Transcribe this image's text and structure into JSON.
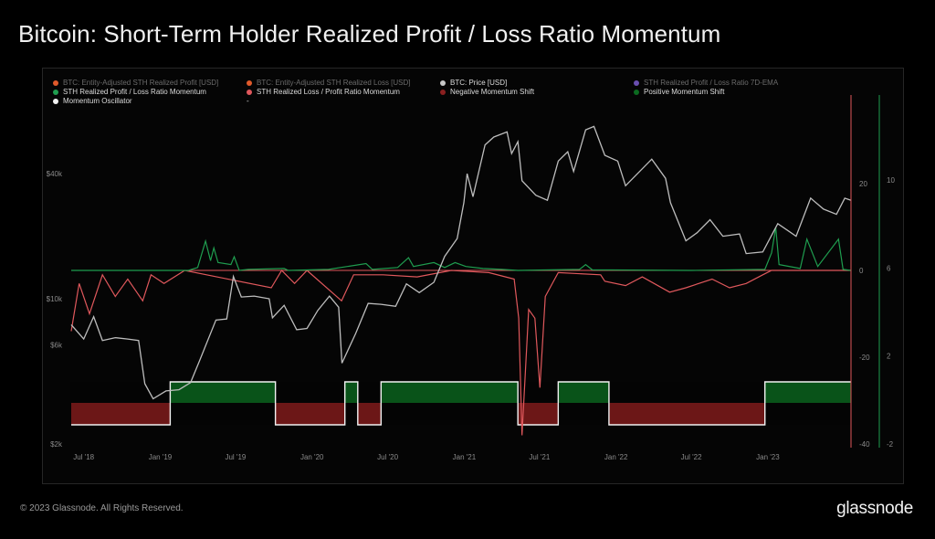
{
  "header": {
    "title": "Bitcoin: Short-Term Holder Realized Profit / Loss Ratio Momentum"
  },
  "footer": {
    "copyright": "© 2023 Glassnode. All Rights Reserved.",
    "brand": "glassnode"
  },
  "watermark": "glassnode",
  "colors": {
    "price": "#bdbdbd",
    "profit_momentum": "#1f9d4f",
    "loss_momentum": "#e0585c",
    "negative_shift": "#7a1a1a",
    "positive_shift": "#0b5e1c",
    "oscillator": "#f2f2f2",
    "adj_profit": "#e05a2b",
    "adj_loss": "#e05a2b",
    "ema": "#6a4fb0",
    "right_axis_red": "#e0585c",
    "right_axis_green": "#1f9d4f"
  },
  "legend": [
    {
      "label": "BTC: Entity-Adjusted STH Realized Profit [USD]",
      "color": "#e05a2b",
      "muted": true,
      "row": 0,
      "col": 0
    },
    {
      "label": "BTC: Entity-Adjusted STH Realized Loss [USD]",
      "color": "#e05a2b",
      "muted": true,
      "row": 0,
      "col": 1
    },
    {
      "label": "BTC: Price [USD]",
      "color": "#c8c8c8",
      "muted": false,
      "row": 0,
      "col": 2
    },
    {
      "label": "STH Realized Profit / Loss Ratio 7D-EMA",
      "color": "#6a4fb0",
      "muted": true,
      "row": 0,
      "col": 3
    },
    {
      "label": "STH Realized Profit / Loss Ratio Momentum",
      "color": "#1f9d4f",
      "muted": false,
      "row": 1,
      "col": 0
    },
    {
      "label": "STH Realized Loss / Profit Ratio Momentum",
      "color": "#e0585c",
      "muted": false,
      "row": 1,
      "col": 1
    },
    {
      "label": "Negative Momentum Shift",
      "color": "#8a2020",
      "muted": false,
      "row": 1,
      "col": 2
    },
    {
      "label": "Positive Momentum Shift",
      "color": "#0b6a20",
      "muted": false,
      "row": 1,
      "col": 3
    },
    {
      "label": "Momentum Oscillator",
      "color": "#f2f2f2",
      "muted": false,
      "row": 2,
      "col": 0
    },
    {
      "label": "-",
      "color": "",
      "muted": false,
      "row": 2,
      "col": 1
    }
  ],
  "chart_data": {
    "type": "line",
    "title": "Bitcoin: Short-Term Holder Realized Profit / Loss Ratio Momentum",
    "x_ticks": [
      "Jul '18",
      "Jan '19",
      "Jul '19",
      "Jan '20",
      "Jul '20",
      "Jan '21",
      "Jul '21",
      "Jan '22",
      "Jul '22",
      "Jan '23"
    ],
    "x_range": [
      "2018-06-01",
      "2023-07-20"
    ],
    "left_axis": {
      "scale": "log",
      "ticks": [
        "$2k",
        "$6k",
        "$10k",
        "$40k"
      ],
      "tick_values": [
        2000,
        6000,
        10000,
        40000
      ],
      "range": [
        2000,
        75000
      ]
    },
    "right_axis_red": {
      "ticks": [
        20,
        0,
        -20,
        -40
      ],
      "range": [
        -40,
        30
      ]
    },
    "right_axis_green": {
      "ticks": [
        10,
        6,
        2,
        -2
      ],
      "range": [
        -2,
        16
      ]
    },
    "series": [
      {
        "name": "BTC: Price [USD]",
        "points": [
          [
            "2018-06-01",
            7500
          ],
          [
            "2018-07-01",
            6400
          ],
          [
            "2018-07-25",
            8200
          ],
          [
            "2018-08-15",
            6300
          ],
          [
            "2018-09-15",
            6500
          ],
          [
            "2018-10-15",
            6400
          ],
          [
            "2018-11-10",
            6300
          ],
          [
            "2018-11-25",
            3900
          ],
          [
            "2018-12-15",
            3300
          ],
          [
            "2019-01-15",
            3600
          ],
          [
            "2019-02-15",
            3650
          ],
          [
            "2019-03-15",
            3950
          ],
          [
            "2019-04-05",
            5000
          ],
          [
            "2019-05-15",
            7900
          ],
          [
            "2019-06-10",
            8000
          ],
          [
            "2019-06-26",
            12800
          ],
          [
            "2019-07-15",
            10200
          ],
          [
            "2019-08-15",
            10300
          ],
          [
            "2019-09-20",
            10000
          ],
          [
            "2019-09-28",
            8100
          ],
          [
            "2019-10-26",
            9300
          ],
          [
            "2019-11-25",
            7100
          ],
          [
            "2019-12-20",
            7200
          ],
          [
            "2020-01-15",
            8800
          ],
          [
            "2020-02-12",
            10300
          ],
          [
            "2020-03-05",
            9100
          ],
          [
            "2020-03-13",
            4900
          ],
          [
            "2020-04-15",
            6800
          ],
          [
            "2020-05-15",
            9500
          ],
          [
            "2020-06-15",
            9400
          ],
          [
            "2020-07-20",
            9200
          ],
          [
            "2020-08-15",
            11800
          ],
          [
            "2020-09-15",
            10700
          ],
          [
            "2020-10-20",
            12000
          ],
          [
            "2020-11-15",
            16000
          ],
          [
            "2020-12-15",
            19500
          ],
          [
            "2020-12-31",
            29000
          ],
          [
            "2021-01-08",
            40000
          ],
          [
            "2021-01-22",
            31000
          ],
          [
            "2021-02-20",
            55000
          ],
          [
            "2021-03-13",
            60000
          ],
          [
            "2021-04-14",
            63500
          ],
          [
            "2021-04-25",
            50000
          ],
          [
            "2021-05-10",
            57000
          ],
          [
            "2021-05-20",
            37000
          ],
          [
            "2021-06-22",
            31500
          ],
          [
            "2021-07-20",
            29800
          ],
          [
            "2021-08-15",
            46000
          ],
          [
            "2021-09-07",
            51000
          ],
          [
            "2021-09-21",
            41000
          ],
          [
            "2021-10-20",
            65000
          ],
          [
            "2021-11-09",
            67500
          ],
          [
            "2021-12-05",
            49000
          ],
          [
            "2022-01-05",
            46000
          ],
          [
            "2022-01-24",
            35000
          ],
          [
            "2022-03-28",
            47000
          ],
          [
            "2022-04-30",
            38000
          ],
          [
            "2022-05-12",
            29000
          ],
          [
            "2022-06-18",
            19000
          ],
          [
            "2022-07-15",
            20800
          ],
          [
            "2022-08-15",
            24000
          ],
          [
            "2022-09-15",
            20000
          ],
          [
            "2022-10-25",
            20500
          ],
          [
            "2022-11-10",
            16500
          ],
          [
            "2022-12-20",
            16800
          ],
          [
            "2023-01-25",
            23000
          ],
          [
            "2023-03-10",
            20000
          ],
          [
            "2023-04-14",
            30500
          ],
          [
            "2023-05-15",
            27000
          ],
          [
            "2023-06-15",
            25500
          ],
          [
            "2023-07-05",
            30500
          ],
          [
            "2023-07-20",
            29800
          ]
        ]
      },
      {
        "name": "STH Realized Profit / Loss Ratio Momentum",
        "points": [
          [
            "2018-06-01",
            0
          ],
          [
            "2019-03-10",
            0
          ],
          [
            "2019-04-01",
            1.5
          ],
          [
            "2019-04-20",
            15
          ],
          [
            "2019-05-02",
            5
          ],
          [
            "2019-05-10",
            11.5
          ],
          [
            "2019-05-20",
            4
          ],
          [
            "2019-06-20",
            3
          ],
          [
            "2019-06-28",
            7
          ],
          [
            "2019-07-10",
            0
          ],
          [
            "2019-08-01",
            0.5
          ],
          [
            "2019-10-26",
            1
          ],
          [
            "2019-11-05",
            0
          ],
          [
            "2020-02-10",
            0.5
          ],
          [
            "2020-05-10",
            3.5
          ],
          [
            "2020-05-25",
            0.5
          ],
          [
            "2020-07-25",
            1.5
          ],
          [
            "2020-08-20",
            6.5
          ],
          [
            "2020-09-01",
            2
          ],
          [
            "2020-10-20",
            4
          ],
          [
            "2020-11-15",
            1.5
          ],
          [
            "2020-12-10",
            4
          ],
          [
            "2021-01-05",
            2
          ],
          [
            "2021-02-15",
            1
          ],
          [
            "2021-04-01",
            0.5
          ],
          [
            "2021-05-10",
            0
          ],
          [
            "2021-10-05",
            0.5
          ],
          [
            "2021-10-20",
            3
          ],
          [
            "2021-11-05",
            0.3
          ],
          [
            "2022-07-01",
            0
          ],
          [
            "2022-12-25",
            0.5
          ],
          [
            "2023-01-10",
            9
          ],
          [
            "2023-01-20",
            22
          ],
          [
            "2023-01-28",
            3
          ],
          [
            "2023-03-20",
            1
          ],
          [
            "2023-04-05",
            16
          ],
          [
            "2023-05-01",
            2
          ],
          [
            "2023-06-20",
            16
          ],
          [
            "2023-07-01",
            0.5
          ],
          [
            "2023-07-20",
            0
          ]
        ]
      },
      {
        "name": "STH Realized Loss / Profit Ratio Momentum",
        "points": [
          [
            "2018-06-01",
            -14
          ],
          [
            "2018-06-20",
            -3
          ],
          [
            "2018-07-15",
            -10
          ],
          [
            "2018-08-15",
            -1
          ],
          [
            "2018-09-15",
            -6
          ],
          [
            "2018-10-15",
            -2
          ],
          [
            "2018-11-20",
            -7
          ],
          [
            "2018-12-10",
            -1
          ],
          [
            "2019-01-10",
            -3
          ],
          [
            "2019-03-01",
            0
          ],
          [
            "2019-09-25",
            -4
          ],
          [
            "2019-10-20",
            0
          ],
          [
            "2019-11-20",
            -3
          ],
          [
            "2019-12-20",
            0
          ],
          [
            "2020-03-12",
            -7
          ],
          [
            "2020-04-10",
            -1
          ],
          [
            "2020-06-20",
            -1
          ],
          [
            "2020-09-10",
            -1.5
          ],
          [
            "2020-12-01",
            0
          ],
          [
            "2021-03-01",
            -0.5
          ],
          [
            "2021-05-01",
            -2
          ],
          [
            "2021-05-12",
            -11
          ],
          [
            "2021-05-20",
            -38
          ],
          [
            "2021-06-05",
            -9
          ],
          [
            "2021-06-20",
            -11
          ],
          [
            "2021-07-02",
            -27
          ],
          [
            "2021-07-15",
            -6
          ],
          [
            "2021-08-15",
            -0.5
          ],
          [
            "2021-11-25",
            -1
          ],
          [
            "2021-12-05",
            -2.5
          ],
          [
            "2022-01-24",
            -3.5
          ],
          [
            "2022-03-05",
            -1.5
          ],
          [
            "2022-05-10",
            -5
          ],
          [
            "2022-06-18",
            -4
          ],
          [
            "2022-08-20",
            -2
          ],
          [
            "2022-10-01",
            -4
          ],
          [
            "2022-11-10",
            -3
          ],
          [
            "2022-12-20",
            -1
          ],
          [
            "2023-01-10",
            0
          ],
          [
            "2023-07-20",
            0
          ]
        ]
      },
      {
        "name": "Momentum Oscillator",
        "shifts": [
          [
            "2018-06-01",
            -1
          ],
          [
            "2019-01-25",
            1
          ],
          [
            "2019-10-05",
            -1
          ],
          [
            "2020-03-20",
            1
          ],
          [
            "2020-04-20",
            -1
          ],
          [
            "2020-06-15",
            1
          ],
          [
            "2021-05-10",
            -1
          ],
          [
            "2021-08-15",
            1
          ],
          [
            "2021-12-15",
            -1
          ],
          [
            "2022-12-25",
            1
          ],
          [
            "2023-07-20",
            1
          ]
        ]
      }
    ]
  }
}
